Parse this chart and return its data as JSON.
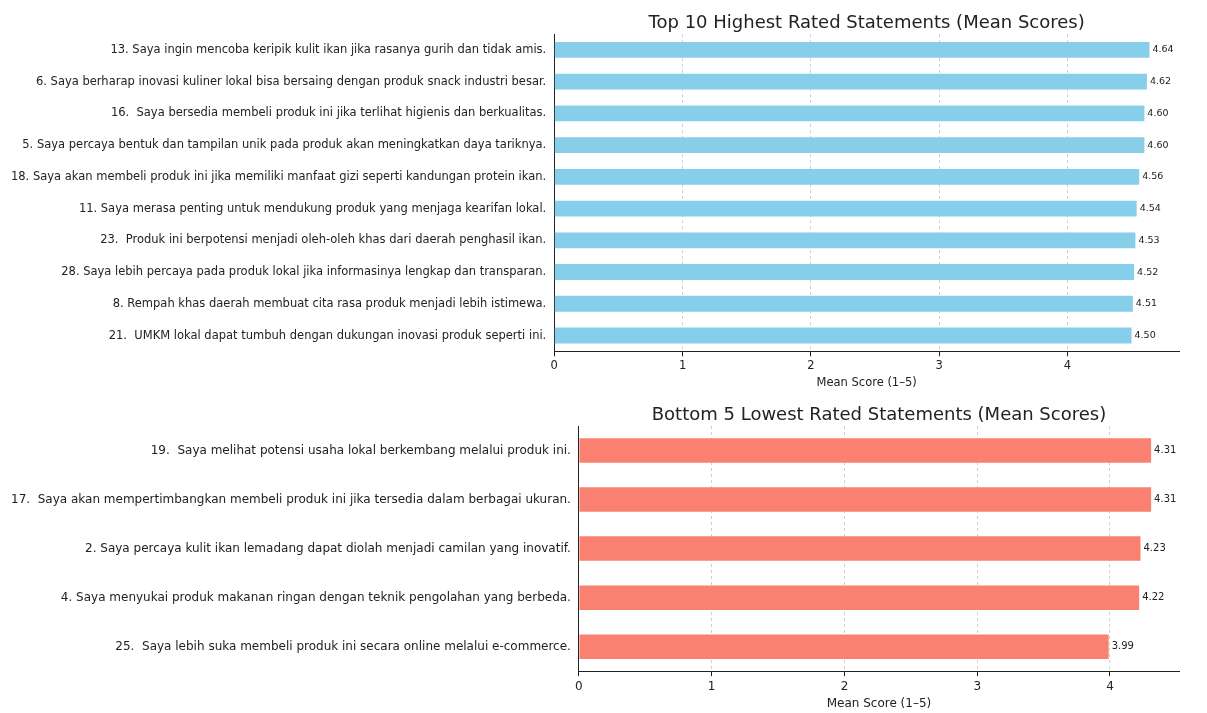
{
  "chart_data": [
    {
      "type": "bar",
      "orientation": "horizontal",
      "title": "Top 10 Highest Rated Statements (Mean Scores)",
      "xlabel": "Mean Score (1–5)",
      "categories": [
        "13. Saya ingin mencoba keripik kulit ikan jika rasanya gurih dan tidak amis.",
        "6. Saya berharap inovasi kuliner lokal bisa bersaing dengan produk snack industri besar.",
        "16.  Saya bersedia membeli produk ini jika terlihat higienis dan berkualitas.",
        "5. Saya percaya bentuk dan tampilan unik pada produk akan meningkatkan daya tariknya.",
        "18. Saya akan membeli produk ini jika memiliki manfaat gizi seperti kandungan protein ikan.",
        "11. Saya merasa penting untuk mendukung produk yang menjaga kearifan lokal.",
        "23.  Produk ini berpotensi menjadi oleh-oleh khas dari daerah penghasil ikan.",
        "28. Saya lebih percaya pada produk lokal jika informasinya lengkap dan transparan.",
        "8. Rempah khas daerah membuat cita rasa produk menjadi lebih istimewa.",
        "21.  UMKM lokal dapat tumbuh dengan dukungan inovasi produk seperti ini."
      ],
      "values": [
        4.64,
        4.62,
        4.6,
        4.6,
        4.56,
        4.54,
        4.53,
        4.52,
        4.51,
        4.5
      ],
      "value_labels": [
        "4.64",
        "4.62",
        "4.60",
        "4.60",
        "4.56",
        "4.54",
        "4.53",
        "4.52",
        "4.51",
        "4.50"
      ],
      "color": "#87ceeb",
      "xlim": [
        0,
        4.87
      ],
      "xticks": [
        0,
        1,
        2,
        3,
        4
      ],
      "grid": "x"
    },
    {
      "type": "bar",
      "orientation": "horizontal",
      "title": "Bottom 5 Lowest Rated Statements (Mean Scores)",
      "xlabel": "Mean Score (1–5)",
      "categories": [
        "19.  Saya melihat potensi usaha lokal berkembang melalui produk ini.",
        "17.  Saya akan mempertimbangkan membeli produk ini jika tersedia dalam berbagai ukuran.",
        "2. Saya percaya kulit ikan lemadang dapat diolah menjadi camilan yang inovatif.",
        "4. Saya menyukai produk makanan ringan dengan teknik pengolahan yang berbeda.",
        "25.  Saya lebih suka membeli produk ini secara online melalui e-commerce."
      ],
      "values": [
        4.31,
        4.31,
        4.23,
        4.22,
        3.99
      ],
      "value_labels": [
        "4.31",
        "4.31",
        "4.23",
        "4.22",
        "3.99"
      ],
      "color": "#fa8072",
      "xlim": [
        0,
        4.52
      ],
      "xticks": [
        0,
        1,
        2,
        3,
        4
      ],
      "grid": "x"
    }
  ]
}
